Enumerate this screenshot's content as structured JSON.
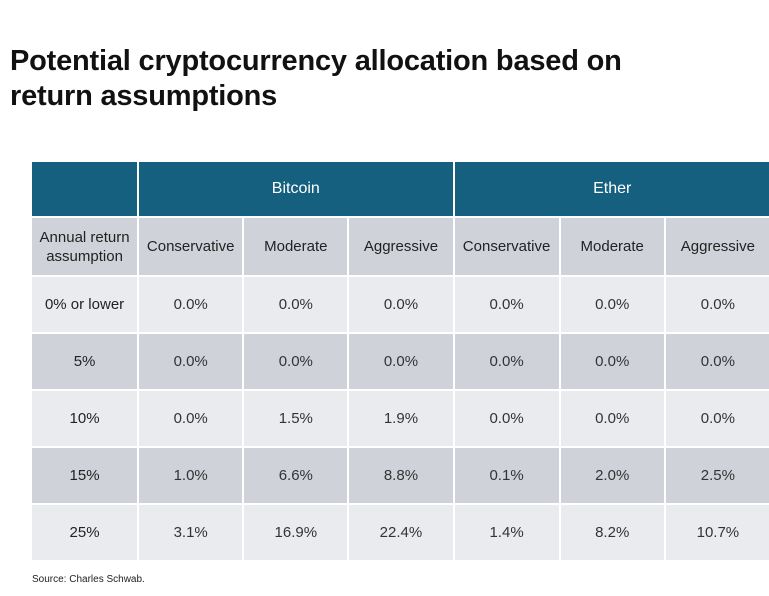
{
  "title_line1": "Potential cryptocurrency allocation based on",
  "title_line2": "return assumptions",
  "groups": [
    "Bitcoin",
    "Ether"
  ],
  "subheaders": [
    "Annual return assumption",
    "Conservative",
    "Moderate",
    "Aggressive",
    "Conservative",
    "Moderate",
    "Aggressive"
  ],
  "rows": [
    [
      "0% or lower",
      "0.0%",
      "0.0%",
      "0.0%",
      "0.0%",
      "0.0%",
      "0.0%"
    ],
    [
      "5%",
      "0.0%",
      "0.0%",
      "0.0%",
      "0.0%",
      "0.0%",
      "0.0%"
    ],
    [
      "10%",
      "0.0%",
      "1.5%",
      "1.9%",
      "0.0%",
      "0.0%",
      "0.0%"
    ],
    [
      "15%",
      "1.0%",
      "6.6%",
      "8.8%",
      "0.1%",
      "2.0%",
      "2.5%"
    ],
    [
      "25%",
      "3.1%",
      "16.9%",
      "22.4%",
      "1.4%",
      "8.2%",
      "10.7%"
    ]
  ],
  "source": "Source: Charles Schwab.",
  "colors": {
    "header_bg": "#16607f",
    "row_light": "#e9ebee",
    "row_dark": "#cfd3d9"
  }
}
